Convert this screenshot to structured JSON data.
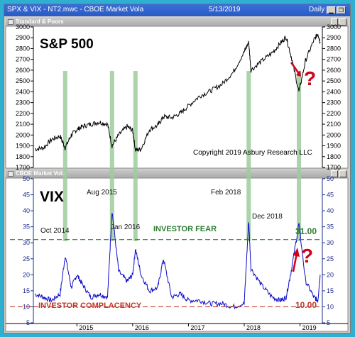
{
  "window": {
    "title_left": "SPX & VIX - NT2.mwc - CBOE Market Vola",
    "title_date": "5/13/2019",
    "title_period": "Daily"
  },
  "top_panel": {
    "title": "Standard & Poors"
  },
  "bottom_panel": {
    "title": "CBOE Market Vola"
  },
  "colors": {
    "spx": "#000000",
    "vix": "#0b0bc8",
    "fear": "#2e7d32",
    "complacency": "#c0392b",
    "highlight": "#9ccc9c",
    "red": "#d0021b"
  },
  "chart_data": [
    {
      "type": "line",
      "title": "S&P 500",
      "annotation": "Copyright 2019 Asbury Research LLC",
      "question_mark": "?",
      "ylim": [
        1700,
        3000
      ],
      "yticks": [
        1700,
        1800,
        1900,
        2000,
        2100,
        2200,
        2300,
        2400,
        2500,
        2600,
        2700,
        2800,
        2900,
        3000
      ],
      "series": [
        {
          "x": [
            2014.25,
            2014.4,
            2014.55,
            2014.7,
            2014.79,
            2014.9,
            2015.0,
            2015.1,
            2015.25,
            2015.4,
            2015.55,
            2015.63,
            2015.75,
            2015.9,
            2016.0,
            2016.05,
            2016.15,
            2016.3,
            2016.45,
            2016.55,
            2016.7,
            2016.85,
            2017.0,
            2017.2,
            2017.4,
            2017.6,
            2017.8,
            2018.0,
            2018.08,
            2018.12,
            2018.3,
            2018.5,
            2018.65,
            2018.75,
            2018.85,
            2018.98,
            2019.1,
            2019.25,
            2019.32,
            2019.36
          ],
          "values": [
            1870,
            1880,
            1960,
            1990,
            1880,
            2000,
            2050,
            2080,
            2100,
            2120,
            2100,
            1900,
            2000,
            2080,
            2040,
            1860,
            1870,
            2050,
            2090,
            2170,
            2160,
            2200,
            2270,
            2360,
            2410,
            2470,
            2580,
            2770,
            2860,
            2600,
            2680,
            2760,
            2850,
            2910,
            2710,
            2400,
            2690,
            2880,
            2940,
            2860
          ]
        }
      ]
    },
    {
      "type": "line",
      "title": "VIX",
      "ylim": [
        5,
        50
      ],
      "yticks": [
        5,
        10,
        15,
        20,
        25,
        30,
        35,
        40,
        45,
        50
      ],
      "x_ticks": [
        "2015",
        "2016",
        "2017",
        "2018",
        "2019"
      ],
      "annotations": [
        "Aug 2015",
        "Feb 2018",
        "Oct 2014",
        "Jan 2016",
        "INVESTOR FEAR",
        "Dec 2018",
        "INVESTOR COMPLACENCY"
      ],
      "fear_level": 31.0,
      "fear_label": "31.00",
      "complacency_level": 10.0,
      "complacency_label": "10.00",
      "question_mark": "?",
      "series": [
        {
          "x": [
            2014.25,
            2014.4,
            2014.55,
            2014.7,
            2014.79,
            2014.9,
            2015.0,
            2015.1,
            2015.25,
            2015.4,
            2015.55,
            2015.63,
            2015.75,
            2015.9,
            2016.0,
            2016.05,
            2016.15,
            2016.3,
            2016.45,
            2016.55,
            2016.7,
            2016.85,
            2017.0,
            2017.2,
            2017.4,
            2017.6,
            2017.8,
            2018.0,
            2018.08,
            2018.12,
            2018.3,
            2018.5,
            2018.65,
            2018.75,
            2018.85,
            2018.98,
            2019.1,
            2019.25,
            2019.32,
            2019.36
          ],
          "values": [
            14,
            13,
            12,
            14,
            26,
            16,
            20,
            17,
            13,
            14,
            13,
            40,
            21,
            18,
            20,
            28,
            20,
            15,
            16,
            25,
            13,
            14,
            12,
            12,
            11,
            11,
            10,
            11,
            37,
            22,
            17,
            13,
            12,
            13,
            22,
            36,
            18,
            13,
            12,
            20
          ]
        }
      ]
    }
  ]
}
